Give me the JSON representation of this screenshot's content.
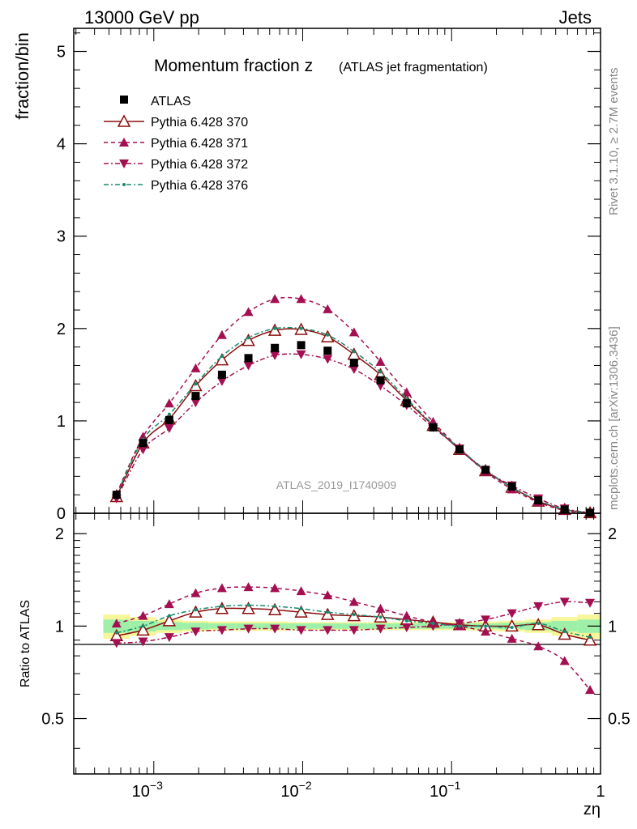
{
  "header": {
    "left": "13000 GeV pp",
    "right": "Jets"
  },
  "side_text": {
    "rivet": "Rivet 3.1.10, ≥ 2.7M events",
    "source": "mcplots.cern.ch [arXiv:1306.3436]"
  },
  "chart_data": {
    "type": "scatter",
    "title_main": "Momentum fraction z",
    "title_sub": "(ATLAS jet fragmentation)",
    "analysis_label": "ATLAS_2019_I1740909",
    "xlabel": "zη",
    "ylabel_top": "fraction/bin",
    "ylabel_bottom": "Ratio to ATLAS",
    "x_scale": "log",
    "xlim": [
      0.00029,
      1.0
    ],
    "ylim_top": [
      0,
      5.25
    ],
    "ylim_bottom": [
      0.33,
      2.33
    ],
    "x_tick_labels": [
      "10^-3",
      "10^-2",
      "10^-1",
      "1"
    ],
    "y_tick_labels_top": [
      "0",
      "1",
      "2",
      "3",
      "4",
      "5"
    ],
    "y_tick_labels_bottom": [
      "0.5",
      "1",
      "2"
    ],
    "legend_position": "top-left",
    "x": [
      0.000562,
      0.000847,
      0.00127,
      0.00191,
      0.00287,
      0.00432,
      0.0065,
      0.00976,
      0.0147,
      0.0221,
      0.0333,
      0.0499,
      0.0751,
      0.113,
      0.169,
      0.254,
      0.382,
      0.574,
      0.85
    ],
    "series": [
      {
        "name": "ATLAS",
        "style": "data",
        "color": "#000000",
        "values": [
          0.2,
          0.76,
          1.01,
          1.27,
          1.5,
          1.68,
          1.79,
          1.82,
          1.76,
          1.63,
          1.44,
          1.19,
          0.93,
          0.69,
          0.47,
          0.29,
          0.14,
          0.04,
          0.005
        ],
        "ratio": [
          1.0,
          1.0,
          1.0,
          1.0,
          1.0,
          1.0,
          1.0,
          1.0,
          1.0,
          1.0,
          1.0,
          1.0,
          1.0,
          1.0,
          1.0,
          1.0,
          1.0,
          1.0,
          1.0
        ],
        "band_green": [
          0.05,
          0.04,
          0.03,
          0.025,
          0.02,
          0.02,
          0.02,
          0.02,
          0.02,
          0.02,
          0.02,
          0.02,
          0.02,
          0.02,
          0.02,
          0.025,
          0.03,
          0.04,
          0.05
        ],
        "band_yellow": [
          0.09,
          0.07,
          0.05,
          0.04,
          0.035,
          0.035,
          0.035,
          0.03,
          0.03,
          0.03,
          0.03,
          0.03,
          0.03,
          0.03,
          0.035,
          0.04,
          0.05,
          0.07,
          0.09
        ]
      },
      {
        "name": "Pythia 6.428 370",
        "style": "solid-open-triangle",
        "color": "#8b0f0f",
        "values": [
          0.18,
          0.76,
          1.02,
          1.38,
          1.66,
          1.87,
          1.98,
          1.99,
          1.91,
          1.72,
          1.5,
          1.22,
          0.95,
          0.69,
          0.46,
          0.28,
          0.13,
          0.04,
          0.005
        ],
        "ratio": [
          0.93,
          0.97,
          1.04,
          1.11,
          1.14,
          1.14,
          1.13,
          1.11,
          1.09,
          1.08,
          1.07,
          1.05,
          1.03,
          1.01,
          1.0,
          1.0,
          1.01,
          0.94,
          0.9
        ]
      },
      {
        "name": "Pythia 6.428 371",
        "style": "dashed-up-triangle",
        "color": "#a30f50",
        "values": [
          0.21,
          0.83,
          1.19,
          1.57,
          1.93,
          2.18,
          2.32,
          2.32,
          2.21,
          1.96,
          1.64,
          1.31,
          0.99,
          0.7,
          0.45,
          0.26,
          0.12,
          0.03,
          0.003
        ],
        "ratio": [
          1.02,
          1.08,
          1.18,
          1.28,
          1.33,
          1.34,
          1.33,
          1.3,
          1.26,
          1.2,
          1.14,
          1.08,
          1.03,
          1.0,
          0.96,
          0.91,
          0.86,
          0.77,
          0.62
        ]
      },
      {
        "name": "Pythia 6.428 372",
        "style": "dashdot-down-triangle",
        "color": "#a30f50",
        "values": [
          0.16,
          0.69,
          0.92,
          1.2,
          1.43,
          1.6,
          1.71,
          1.72,
          1.67,
          1.56,
          1.38,
          1.17,
          0.93,
          0.7,
          0.46,
          0.3,
          0.16,
          0.05,
          0.006
        ],
        "ratio": [
          0.88,
          0.89,
          0.92,
          0.96,
          0.97,
          0.98,
          0.98,
          0.97,
          0.97,
          0.97,
          0.98,
          0.99,
          1.0,
          1.02,
          1.05,
          1.1,
          1.16,
          1.2,
          1.19
        ]
      },
      {
        "name": "Pythia 6.428 376",
        "style": "dashdot-dot",
        "color": "#1a8a6e",
        "values": [
          0.2,
          0.8,
          1.07,
          1.4,
          1.7,
          1.9,
          2.0,
          2.0,
          1.93,
          1.75,
          1.53,
          1.24,
          0.96,
          0.7,
          0.47,
          0.28,
          0.14,
          0.04,
          0.005
        ],
        "ratio": [
          0.95,
          1.0,
          1.08,
          1.13,
          1.16,
          1.17,
          1.16,
          1.14,
          1.11,
          1.09,
          1.07,
          1.04,
          1.02,
          1.0,
          1.0,
          0.99,
          1.02,
          0.96,
          0.92
        ]
      }
    ]
  }
}
